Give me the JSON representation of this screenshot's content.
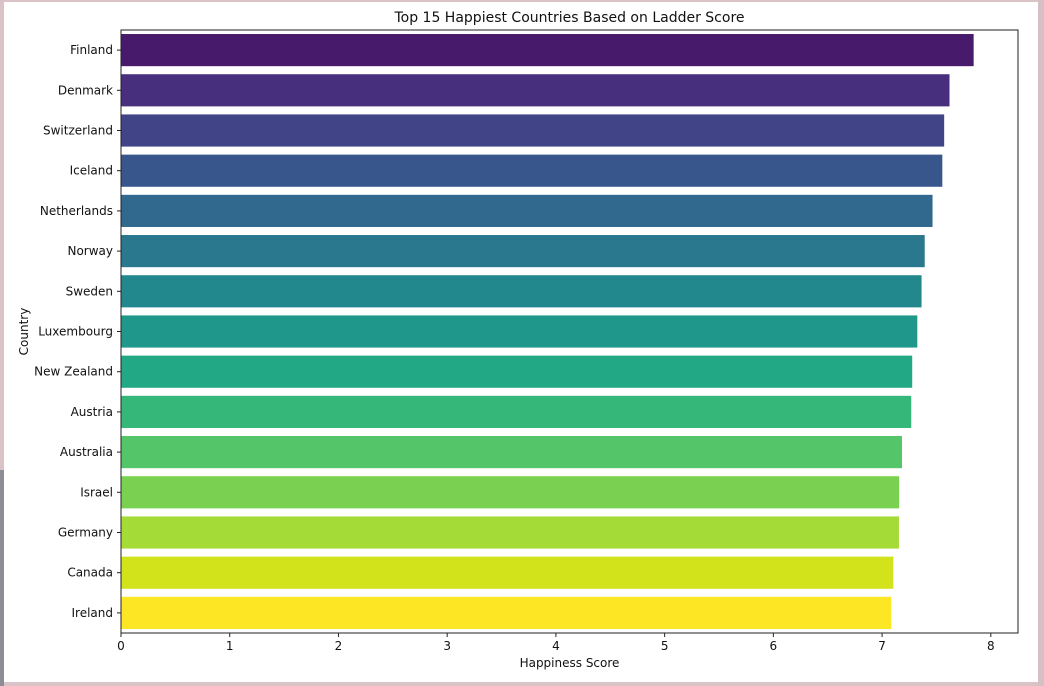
{
  "chart_data": {
    "type": "bar",
    "orientation": "horizontal",
    "title": "Top 15 Happiest Countries Based on Ladder Score",
    "xlabel": "Happiness Score",
    "ylabel": "Country",
    "xlim": [
      0,
      8.25
    ],
    "xticks": [
      0,
      1,
      2,
      3,
      4,
      5,
      6,
      7,
      8
    ],
    "grid": false,
    "legend": "none",
    "categories": [
      "Finland",
      "Denmark",
      "Switzerland",
      "Iceland",
      "Netherlands",
      "Norway",
      "Sweden",
      "Luxembourg",
      "New Zealand",
      "Austria",
      "Australia",
      "Israel",
      "Germany",
      "Canada",
      "Ireland"
    ],
    "values": [
      7.842,
      7.62,
      7.571,
      7.554,
      7.464,
      7.392,
      7.363,
      7.324,
      7.277,
      7.268,
      7.183,
      7.157,
      7.155,
      7.103,
      7.085
    ],
    "colors": [
      "#481a6c",
      "#472f7d",
      "#414487",
      "#39568c",
      "#31688e",
      "#2a788e",
      "#23888e",
      "#1f988b",
      "#22a884",
      "#35b779",
      "#54c568",
      "#7ad151",
      "#a5db36",
      "#d2e21b",
      "#fde725"
    ]
  }
}
